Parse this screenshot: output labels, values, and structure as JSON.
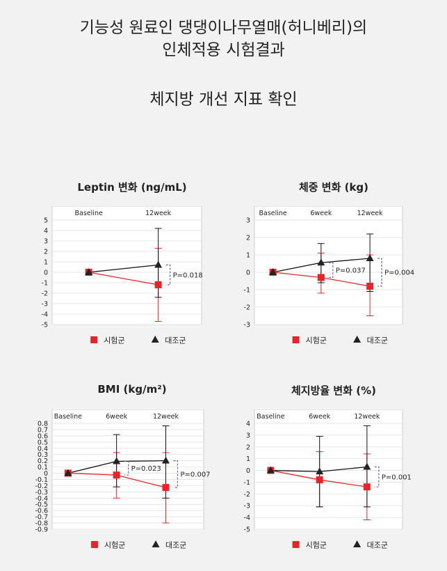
{
  "header": {
    "line1": "기능성 원료인 댕댕이나무열매(허니베리)의",
    "line2": "인체적용 시험결과",
    "subtitle": "체지방 개선 지표 확인"
  },
  "legend": {
    "test_label": "시험군",
    "control_label": "대조군"
  },
  "colors": {
    "test": "#e8242a",
    "control": "#111111",
    "pvalue_bracket": "#7b5fa6"
  },
  "chart_data": [
    {
      "type": "line",
      "title": "Leptin 변화 (ng/mL)",
      "x": [
        "Baseline",
        "12week"
      ],
      "ylim": [
        -5,
        5
      ],
      "yticks": [
        5,
        4,
        3,
        2,
        1,
        0,
        -1,
        -2,
        -3,
        -4,
        -5
      ],
      "grid": true,
      "series": [
        {
          "name": "시험군",
          "marker": "square",
          "values": [
            0,
            -1.2
          ],
          "err_low": [
            0,
            -4.7
          ],
          "err_high": [
            0,
            2.3
          ]
        },
        {
          "name": "대조군",
          "marker": "triangle",
          "values": [
            0,
            0.7
          ],
          "err_low": [
            0,
            -2.4
          ],
          "err_high": [
            0,
            4.2
          ]
        }
      ],
      "pvalues": [
        {
          "x": "12week",
          "label": "P=0.018"
        }
      ]
    },
    {
      "type": "line",
      "title": "체중 변화 (kg)",
      "x": [
        "Baseline",
        "6week",
        "12week"
      ],
      "ylim": [
        -3,
        3
      ],
      "yticks": [
        3,
        2,
        1,
        0,
        -1,
        -2,
        -3
      ],
      "grid": true,
      "series": [
        {
          "name": "시험군",
          "marker": "square",
          "values": [
            0,
            -0.3,
            -0.8
          ],
          "err_low": [
            0,
            -1.2,
            -2.5
          ],
          "err_high": [
            0,
            1.1,
            1.0
          ]
        },
        {
          "name": "대조군",
          "marker": "triangle",
          "values": [
            0,
            0.55,
            0.8
          ],
          "err_low": [
            0,
            -0.6,
            -1.1
          ],
          "err_high": [
            0,
            1.65,
            2.2
          ]
        }
      ],
      "pvalues": [
        {
          "x": "6week",
          "label": "P=0.037"
        },
        {
          "x": "12week",
          "label": "P=0.004"
        }
      ]
    },
    {
      "type": "line",
      "title": "BMI (kg/m²)",
      "x": [
        "Baseline",
        "6week",
        "12week"
      ],
      "ylim": [
        -0.9,
        0.8
      ],
      "yticks": [
        0.8,
        0.7,
        0.6,
        0.5,
        0.4,
        0.3,
        0.2,
        0.1,
        0,
        -0.1,
        -0.2,
        -0.3,
        -0.4,
        -0.5,
        -0.6,
        -0.7,
        -0.8,
        -0.9
      ],
      "grid": true,
      "series": [
        {
          "name": "시험군",
          "marker": "square",
          "values": [
            0,
            -0.03,
            -0.23
          ],
          "err_low": [
            0,
            -0.4,
            -0.8
          ],
          "err_high": [
            0,
            0.33,
            0.33
          ]
        },
        {
          "name": "대조군",
          "marker": "triangle",
          "values": [
            0,
            0.19,
            0.2
          ],
          "err_low": [
            0,
            -0.22,
            -0.4
          ],
          "err_high": [
            0,
            0.62,
            0.76
          ]
        }
      ],
      "pvalues": [
        {
          "x": "6week",
          "label": "P=0.023"
        },
        {
          "x": "12week",
          "label": "P=0.007"
        }
      ]
    },
    {
      "type": "line",
      "title": "체지방율 변화 (%)",
      "x": [
        "Baseline",
        "6week",
        "12week"
      ],
      "ylim": [
        -5,
        4
      ],
      "yticks": [
        4,
        3,
        2,
        1,
        0,
        -1,
        -2,
        -3,
        -4,
        -5
      ],
      "grid": true,
      "series": [
        {
          "name": "시험군",
          "marker": "square",
          "values": [
            0,
            -0.8,
            -1.4
          ],
          "err_low": [
            0,
            -3.1,
            -4.2
          ],
          "err_high": [
            0,
            1.6,
            1.4
          ]
        },
        {
          "name": "대조군",
          "marker": "triangle",
          "values": [
            0,
            -0.1,
            0.3
          ],
          "err_low": [
            0,
            -3.1,
            -3.1
          ],
          "err_high": [
            0,
            2.9,
            3.8
          ]
        }
      ],
      "pvalues": [
        {
          "x": "12week",
          "label": "P=0.001"
        }
      ]
    }
  ]
}
